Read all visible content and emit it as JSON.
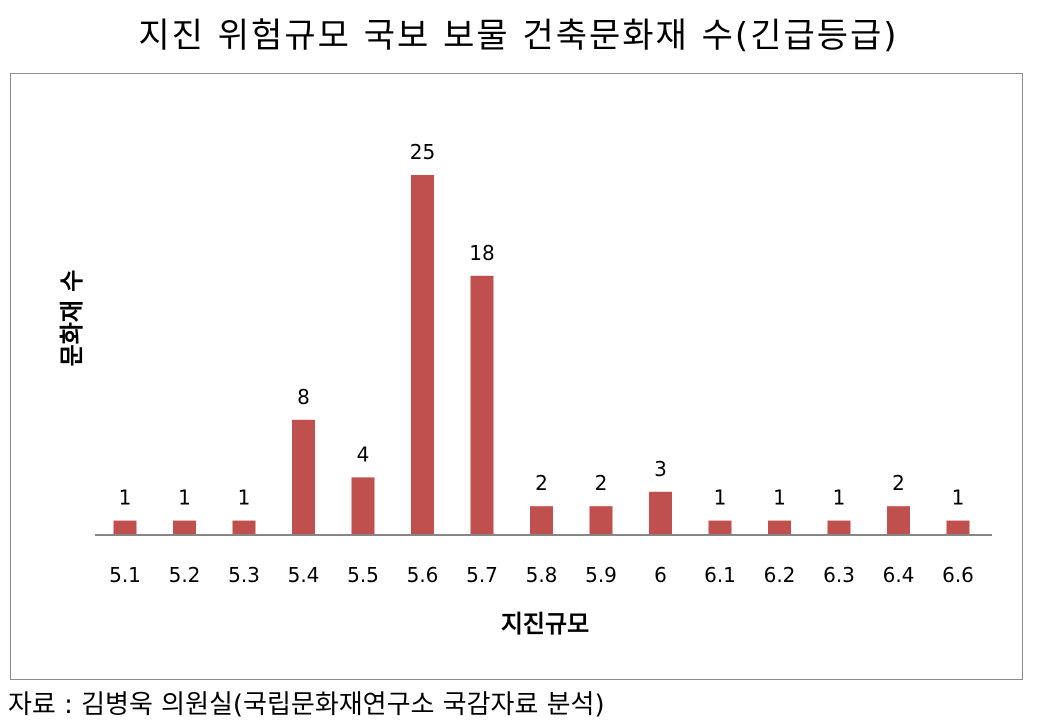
{
  "title": "지진 위험규모 국보 보물 건축문화재 수(긴급등급)",
  "source": "자료 : 김병욱 의원실(국립문화재연구소 국감자료 분석)",
  "colors": {
    "bar": "#C0504D",
    "axis": "#868686",
    "frame": "#8c8c8c"
  },
  "chart_data": {
    "type": "bar",
    "title": "지진 위험규모 국보 보물 건축문화재 수(긴급등급)",
    "xlabel": "지진규모",
    "ylabel": "문화재 수",
    "categories": [
      "5.1",
      "5.2",
      "5.3",
      "5.4",
      "5.5",
      "5.6",
      "5.7",
      "5.8",
      "5.9",
      "6",
      "6.1",
      "6.2",
      "6.3",
      "6.4",
      "6.6"
    ],
    "values": [
      1,
      1,
      1,
      8,
      4,
      25,
      18,
      2,
      2,
      3,
      1,
      1,
      1,
      2,
      1
    ],
    "data_labels": true,
    "grid": false,
    "legend": "none"
  }
}
